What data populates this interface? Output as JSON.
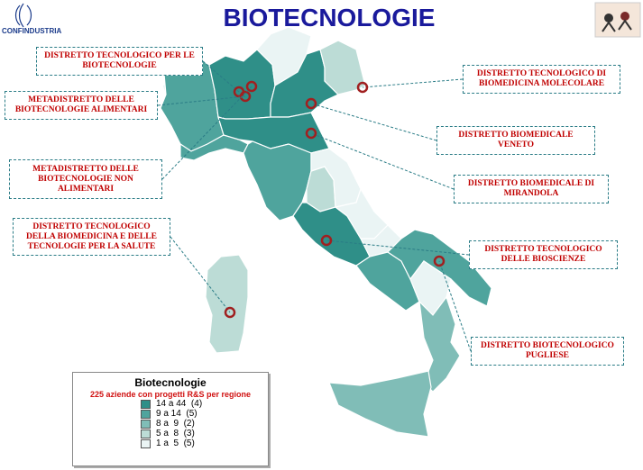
{
  "header": {
    "title": "BIOTECNOLOGIE",
    "logo_text": "CONFINDUSTRIA"
  },
  "callouts": [
    "DISTRETTO TECNOLOGICO PER LE BIOTECNOLOGIE",
    "METADISTRETTO DELLE BIOTECNOLOGIE ALIMENTARI",
    "METADISTRETTO DELLE BIOTECNOLOGIE NON ALIMENTARI",
    "DISTRETTO TECNOLOGICO DELLA BIOMEDICINA E DELLE TECNOLOGIE PER LA SALUTE",
    "DISTRETTO TECNOLOGICO DI BIOMEDICINA MOLECOLARE",
    "DISTRETTO BIOMEDICALE VENETO",
    "DISTRETTO BIOMEDICALE DI MIRANDOLA",
    "DISTRETTO TECNOLOGICO DELLE BIOSCIENZE",
    "DISTRETTO BIOTECNOLOGICO PUGLIESE"
  ],
  "legend": {
    "title": "Biotecnologie",
    "subtitle": "225 aziende con progetti R&S per regione",
    "items": [
      {
        "label": "14 a 44  (4)",
        "color": "#2f8f88"
      },
      {
        "label": "9 a 14  (5)",
        "color": "#4fa49d"
      },
      {
        "label": "8 a  9  (2)",
        "color": "#80bdb7"
      },
      {
        "label": "5 a  8  (3)",
        "color": "#bcdcd6"
      },
      {
        "label": "1 a  5  (5)",
        "color": "#eaf4f4"
      }
    ]
  }
}
